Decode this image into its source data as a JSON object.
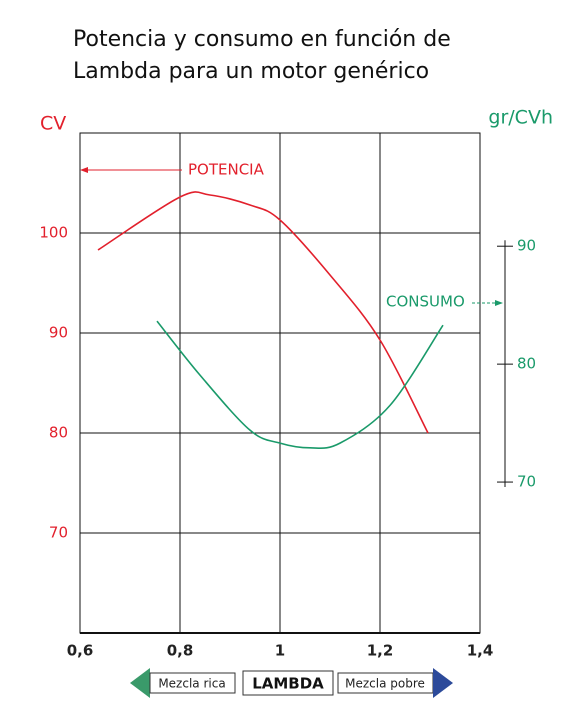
{
  "chart_data": {
    "type": "line",
    "title_lines": [
      "Potencia y consumo en función de",
      "Lambda para un motor genérico"
    ],
    "y_label": "CV",
    "y2_label": "gr/CVh",
    "x_label": "LAMBDA",
    "annotations": [
      "Mezcla rica",
      "Mezcla pobre"
    ],
    "xlim": [
      0.6,
      1.4
    ],
    "xticks": [
      {
        "value": 0.6,
        "label": "0,6"
      },
      {
        "value": 0.8,
        "label": "0,8"
      },
      1,
      {
        "value": 1.2,
        "label": "1,2"
      },
      {
        "value": 1.4,
        "label": "1,4"
      }
    ],
    "ylim": [
      60,
      110
    ],
    "yticks": [
      70,
      80,
      90,
      100
    ],
    "y2lim": [
      57.2,
      99.6
    ],
    "y2ticks": [
      70,
      80,
      90
    ],
    "grid": true,
    "series": [
      {
        "name": "POTENCIA",
        "color": "#e2202c",
        "axis": "y",
        "x": [
          0.636,
          0.8,
          0.86,
          0.94,
          1.0,
          1.1,
          1.2,
          1.296
        ],
        "values": [
          98.3,
          103.6,
          103.8,
          102.8,
          101.3,
          95.8,
          89.3,
          80.0
        ]
      },
      {
        "name": "CONSUMO",
        "color": "#1a9a6a",
        "axis": "y2",
        "x": [
          0.754,
          0.84,
          0.94,
          1.0,
          1.06,
          1.12,
          1.22,
          1.326
        ],
        "values": [
          83.65,
          79.07,
          74.4,
          73.3,
          72.9,
          73.3,
          76.5,
          83.3
        ]
      }
    ]
  }
}
